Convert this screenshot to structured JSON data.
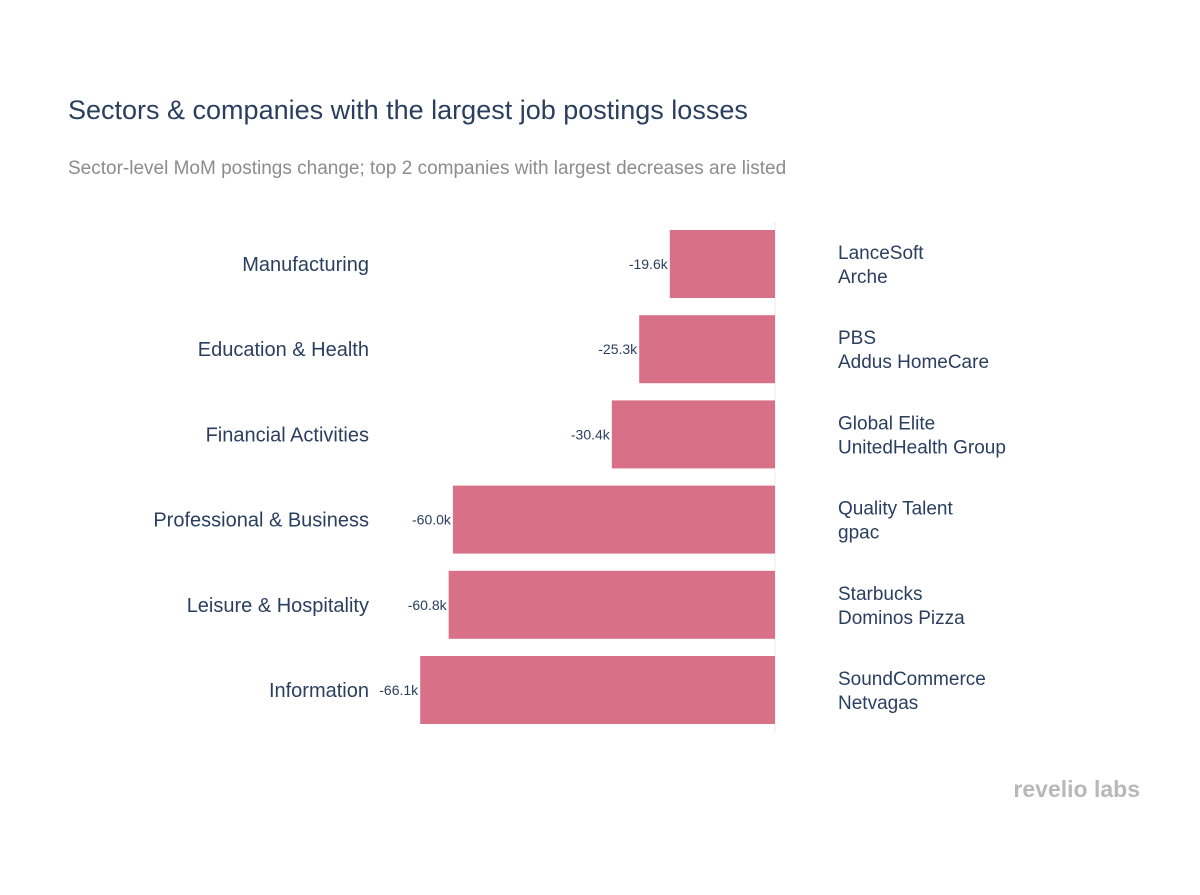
{
  "chart_data": {
    "type": "bar",
    "orientation": "horizontal",
    "title": "Sectors & companies with the largest job postings losses",
    "subtitle": "Sector-level MoM postings change; top 2 companies with largest decreases are listed",
    "categories": [
      "Manufacturing",
      "Education & Health",
      "Financial Activities",
      "Professional & Business",
      "Leisure & Hospitality",
      "Information"
    ],
    "values": [
      -19.6,
      -25.3,
      -30.4,
      -60.0,
      -60.8,
      -66.1
    ],
    "value_labels": [
      "-19.6k",
      "-25.3k",
      "-30.4k",
      "-60.0k",
      "-60.8k",
      "-66.1k"
    ],
    "companies": [
      [
        "LanceSoft",
        "Arche"
      ],
      [
        "PBS",
        "Addus HomeCare"
      ],
      [
        "Global Elite",
        "UnitedHealth Group"
      ],
      [
        "Quality Talent",
        "gpac"
      ],
      [
        "Starbucks",
        "Dominos Pizza"
      ],
      [
        "SoundCommerce",
        "Netvagas"
      ]
    ],
    "bar_color": "#d87087",
    "xlim": [
      -68,
      0
    ],
    "grid": false,
    "legend": "none"
  },
  "brand": {
    "logo_text_left": "revelio",
    "logo_text_right": "labs"
  },
  "colors": {
    "title": "#2a3f5f",
    "subtitle": "#8c8c8c",
    "logo": "#b8b8b8",
    "zero_line": "#ebebeb"
  }
}
